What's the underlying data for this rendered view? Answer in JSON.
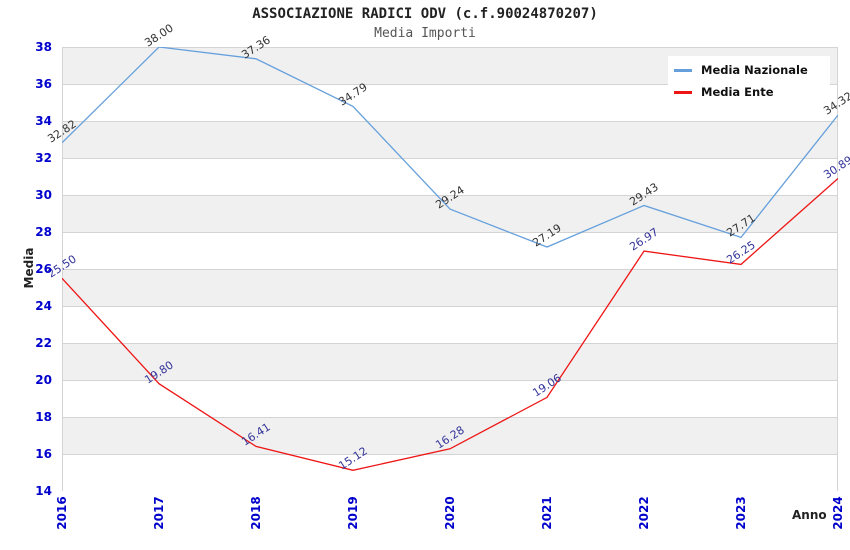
{
  "title": "ASSOCIAZIONE RADICI ODV (c.f.90024870207)",
  "subtitle": "Media Importi",
  "axes": {
    "y_title": "Media",
    "x_title": "Anno",
    "y_ticks": [
      14,
      16,
      18,
      20,
      22,
      24,
      26,
      28,
      30,
      32,
      34,
      36,
      38
    ],
    "x_ticks": [
      "2016",
      "2017",
      "2018",
      "2019",
      "2020",
      "2021",
      "2022",
      "2023",
      "2024"
    ]
  },
  "colors": {
    "tick_label": "#0000cc",
    "grid_line": "#d4d4d4",
    "band_fill": "#f0f0f0",
    "nazionale_line": "#66a0dc",
    "ente_line": "#ee1515",
    "nazionale_point_label": "#333333",
    "ente_point_label": "#333399"
  },
  "chart_data": {
    "type": "line",
    "title": "ASSOCIAZIONE RADICI ODV (c.f.90024870207)",
    "subtitle": "Media Importi",
    "xlabel": "Anno",
    "ylabel": "Media",
    "x": [
      2016,
      2017,
      2018,
      2019,
      2020,
      2021,
      2022,
      2023,
      2024
    ],
    "series": [
      {
        "name": "Media Nazionale",
        "color": "#66a0dc",
        "label_color": "#333333",
        "values": [
          "32.82",
          "38.00",
          "37.36",
          "34.79",
          "29.24",
          "27.19",
          "29.43",
          "27.71",
          "34.32"
        ]
      },
      {
        "name": "Media Ente",
        "color": "#ee1515",
        "label_color": "#333399",
        "values": [
          "25.50",
          "19.80",
          "16.41",
          "15.12",
          "16.28",
          "19.06",
          "26.97",
          "26.25",
          "30.89"
        ]
      }
    ],
    "ylim": [
      14,
      38
    ],
    "y_step": 2,
    "grid": true,
    "alternating_bands": true,
    "legend_position": "top-right"
  }
}
